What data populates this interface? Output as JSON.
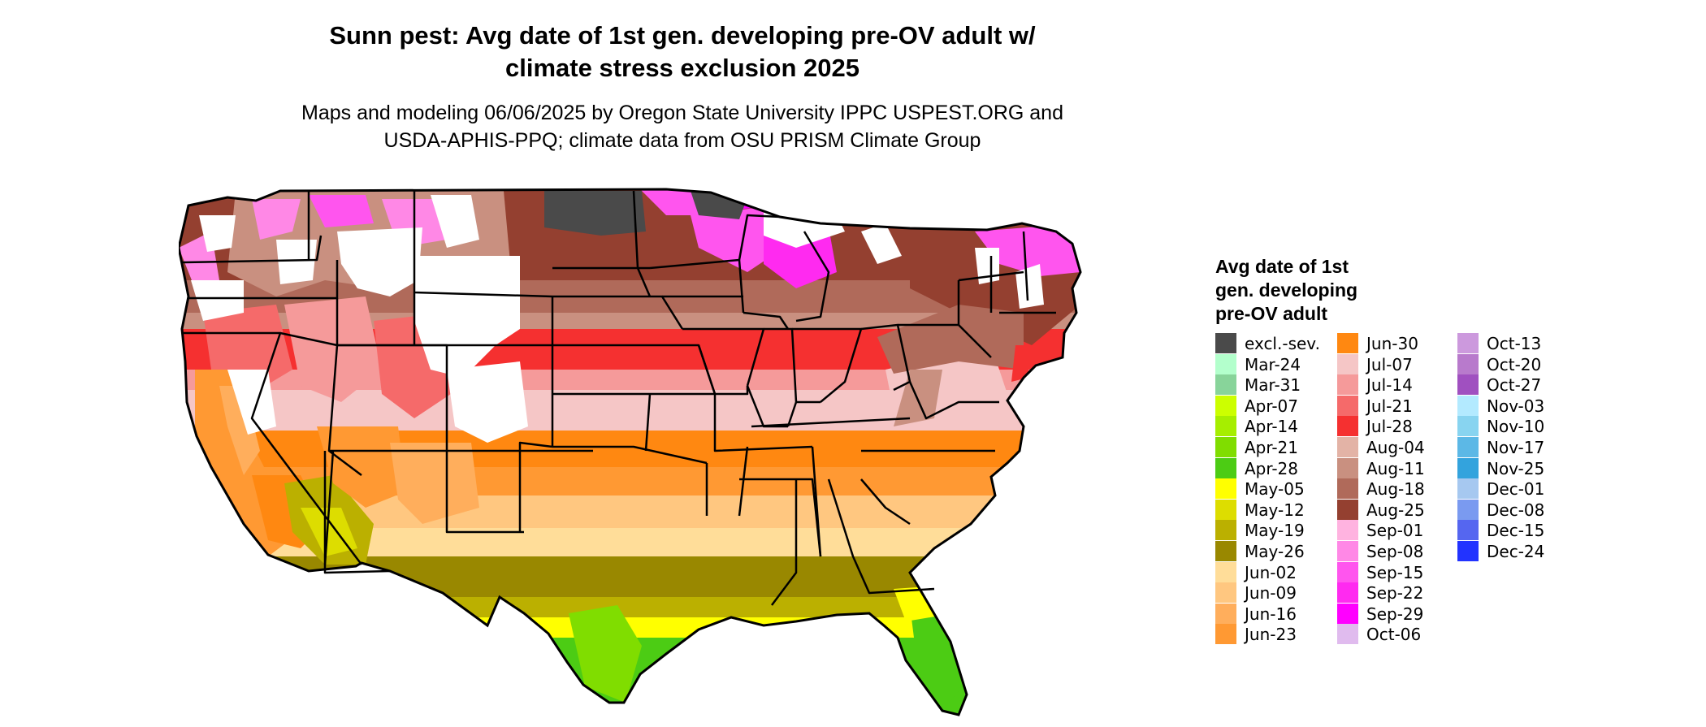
{
  "title_line1": "Sunn pest: Avg date of 1st gen. developing pre-OV adult w/",
  "title_line2": "climate stress exclusion 2025",
  "subtitle_line1": "Maps and modeling 06/06/2025 by Oregon State University IPPC USPEST.ORG and",
  "subtitle_line2": "USDA-APHIS-PPQ; climate data from OSU PRISM Climate Group",
  "legend": {
    "title_lines": [
      "Avg date of 1st",
      "gen. developing",
      "pre-OV adult"
    ],
    "columns": [
      [
        {
          "label": "excl.-sev.",
          "color": "#4a4a4a"
        },
        {
          "label": "Mar-24",
          "color": "#b3ffcc"
        },
        {
          "label": "Mar-31",
          "color": "#88d49a"
        },
        {
          "label": "Apr-07",
          "color": "#ccff00"
        },
        {
          "label": "Apr-14",
          "color": "#a6ee00"
        },
        {
          "label": "Apr-21",
          "color": "#80dd00"
        },
        {
          "label": "Apr-28",
          "color": "#4ccc14"
        },
        {
          "label": "May-05",
          "color": "#ffff00"
        },
        {
          "label": "May-12",
          "color": "#dddd00"
        },
        {
          "label": "May-19",
          "color": "#bbb000"
        },
        {
          "label": "May-26",
          "color": "#998800"
        },
        {
          "label": "Jun-02",
          "color": "#ffdd99"
        },
        {
          "label": "Jun-09",
          "color": "#ffc780"
        },
        {
          "label": "Jun-16",
          "color": "#ffae5c"
        },
        {
          "label": "Jun-23",
          "color": "#ff9933"
        }
      ],
      [
        {
          "label": "Jun-30",
          "color": "#ff8811"
        },
        {
          "label": "Jul-07",
          "color": "#f5c6c6"
        },
        {
          "label": "Jul-14",
          "color": "#f59a9a"
        },
        {
          "label": "Jul-21",
          "color": "#f56a6a"
        },
        {
          "label": "Jul-28",
          "color": "#f53030"
        },
        {
          "label": "Aug-04",
          "color": "#e3b3a6"
        },
        {
          "label": "Aug-11",
          "color": "#c99080"
        },
        {
          "label": "Aug-18",
          "color": "#b06a5a"
        },
        {
          "label": "Aug-25",
          "color": "#944030"
        },
        {
          "label": "Sep-01",
          "color": "#ffb3e0"
        },
        {
          "label": "Sep-08",
          "color": "#ff88e6"
        },
        {
          "label": "Sep-15",
          "color": "#ff55ee"
        },
        {
          "label": "Sep-22",
          "color": "#ff2af0"
        },
        {
          "label": "Sep-29",
          "color": "#ff00ff"
        },
        {
          "label": "Oct-06",
          "color": "#e0bbee"
        }
      ],
      [
        {
          "label": "Oct-13",
          "color": "#cc99dd"
        },
        {
          "label": "Oct-20",
          "color": "#b87acc"
        },
        {
          "label": "Oct-27",
          "color": "#a050c0"
        },
        {
          "label": "Nov-03",
          "color": "#b3eaff"
        },
        {
          "label": "Nov-10",
          "color": "#88d4f0"
        },
        {
          "label": "Nov-17",
          "color": "#5cb8e6"
        },
        {
          "label": "Nov-25",
          "color": "#33a3dd"
        },
        {
          "label": "Dec-01",
          "color": "#a6c8f0"
        },
        {
          "label": "Dec-08",
          "color": "#7a9af0"
        },
        {
          "label": "Dec-15",
          "color": "#5566f0"
        },
        {
          "label": "Dec-24",
          "color": "#2233ff"
        }
      ]
    ]
  }
}
